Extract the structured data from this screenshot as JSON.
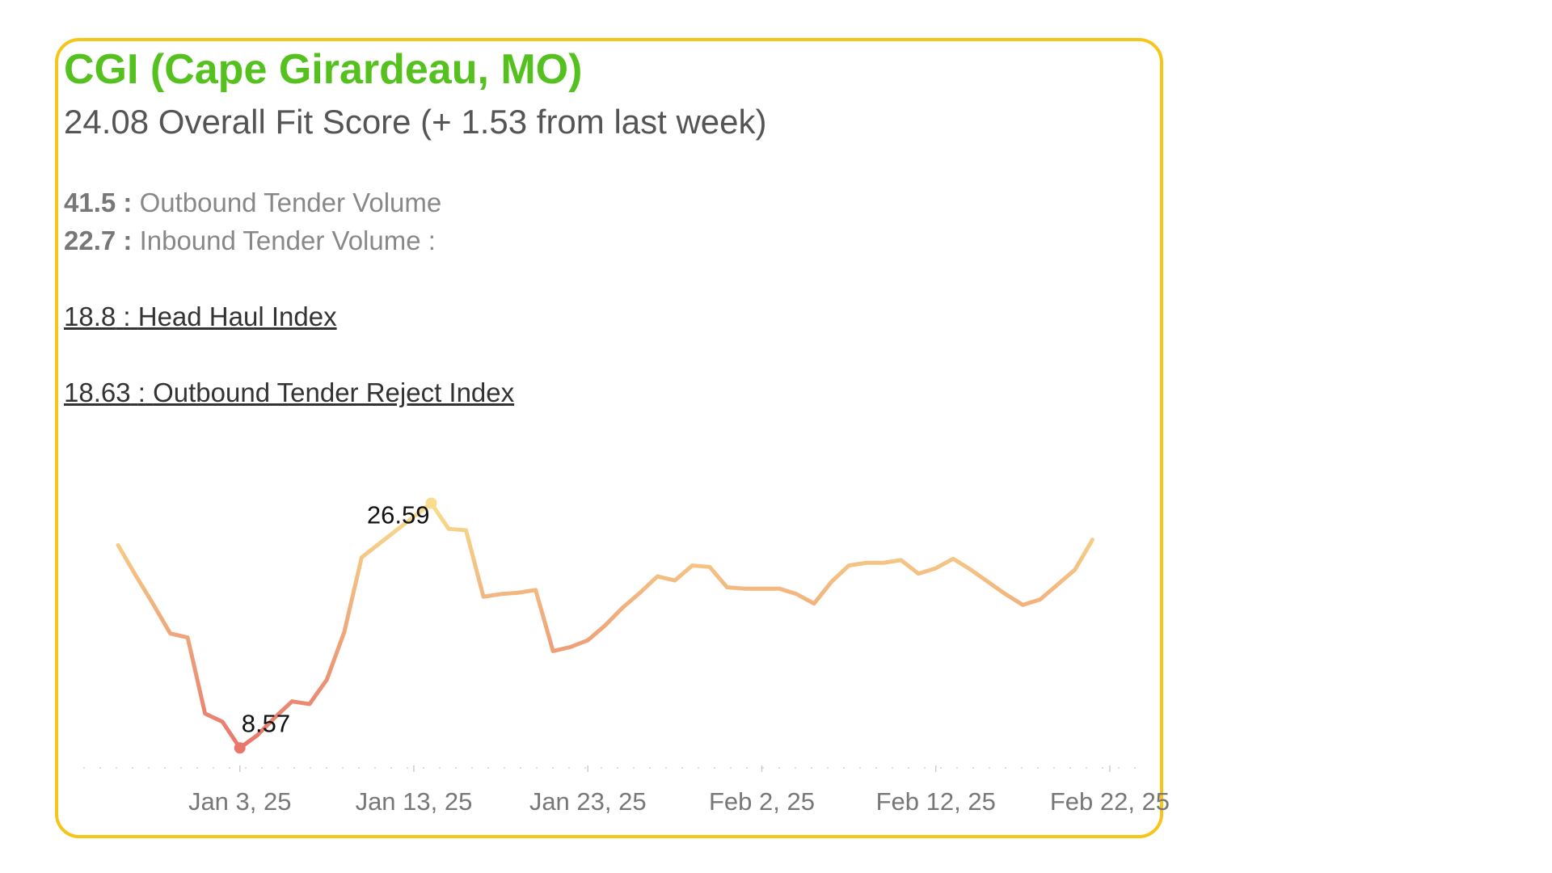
{
  "chart_data": {
    "type": "line",
    "title": "CGI (Cape Girardeau, MO)",
    "subtitle": "24.08 Overall Fit Score (+ 1.53 from last week)",
    "metrics": [
      {
        "value": 41.5,
        "separator": ":",
        "label": "Outbound Tender Volume",
        "underline": false
      },
      {
        "value": 22.7,
        "separator": ":",
        "label": "Inbound Tender Volume :",
        "underline": false
      },
      {
        "value": 18.8,
        "separator": ":",
        "label": "Head Haul Index",
        "underline": true
      },
      {
        "value": 18.63,
        "separator": ":",
        "label": "Outbound Tender Reject Index",
        "underline": true
      }
    ],
    "x": [
      "2024-12-27",
      "2024-12-28",
      "2024-12-29",
      "2024-12-30",
      "2024-12-31",
      "2025-01-01",
      "2025-01-02",
      "2025-01-03",
      "2025-01-04",
      "2025-01-05",
      "2025-01-06",
      "2025-01-07",
      "2025-01-08",
      "2025-01-09",
      "2025-01-10",
      "2025-01-11",
      "2025-01-12",
      "2025-01-13",
      "2025-01-14",
      "2025-01-15",
      "2025-01-16",
      "2025-01-17",
      "2025-01-18",
      "2025-01-19",
      "2025-01-20",
      "2025-01-21",
      "2025-01-22",
      "2025-01-23",
      "2025-01-24",
      "2025-01-25",
      "2025-01-26",
      "2025-01-27",
      "2025-01-28",
      "2025-01-29",
      "2025-01-30",
      "2025-01-31",
      "2025-02-01",
      "2025-02-02",
      "2025-02-03",
      "2025-02-04",
      "2025-02-05",
      "2025-02-06",
      "2025-02-07",
      "2025-02-08",
      "2025-02-09",
      "2025-02-10",
      "2025-02-11",
      "2025-02-12",
      "2025-02-13",
      "2025-02-14",
      "2025-02-15",
      "2025-02-16",
      "2025-02-17",
      "2025-02-18",
      "2025-02-19",
      "2025-02-20",
      "2025-02-21"
    ],
    "values": [
      23.5,
      21.3,
      19.2,
      17.0,
      16.7,
      11.1,
      10.5,
      8.57,
      9.5,
      10.8,
      12.0,
      11.8,
      13.6,
      17.1,
      22.6,
      23.6,
      24.6,
      25.6,
      26.59,
      24.7,
      24.6,
      19.7,
      19.9,
      20.0,
      20.2,
      15.7,
      16.0,
      16.5,
      17.6,
      18.9,
      20.0,
      21.2,
      20.9,
      22.0,
      21.9,
      20.4,
      20.3,
      20.3,
      20.3,
      19.9,
      19.2,
      20.8,
      22.0,
      22.2,
      22.2,
      22.4,
      21.4,
      21.8,
      22.5,
      21.7,
      20.8,
      19.9,
      19.1,
      19.5,
      20.6,
      21.7,
      23.9
    ],
    "labeled_points": [
      7,
      18
    ],
    "color_low": "#e8766b",
    "color_high": "#f8dd8c",
    "xlim": [
      "2024-12-25",
      "2025-02-24"
    ],
    "ylim": [
      7.1,
      29
    ],
    "xticks": [
      {
        "value": "2025-01-03",
        "label": "Jan 3, 25"
      },
      {
        "value": "2025-01-13",
        "label": "Jan 13, 25"
      },
      {
        "value": "2025-01-23",
        "label": "Jan 23, 25"
      },
      {
        "value": "2025-02-02",
        "label": "Feb 2, 25"
      },
      {
        "value": "2025-02-12",
        "label": "Feb 12, 25"
      },
      {
        "value": "2025-02-22",
        "label": "Feb 22, 25"
      }
    ]
  }
}
